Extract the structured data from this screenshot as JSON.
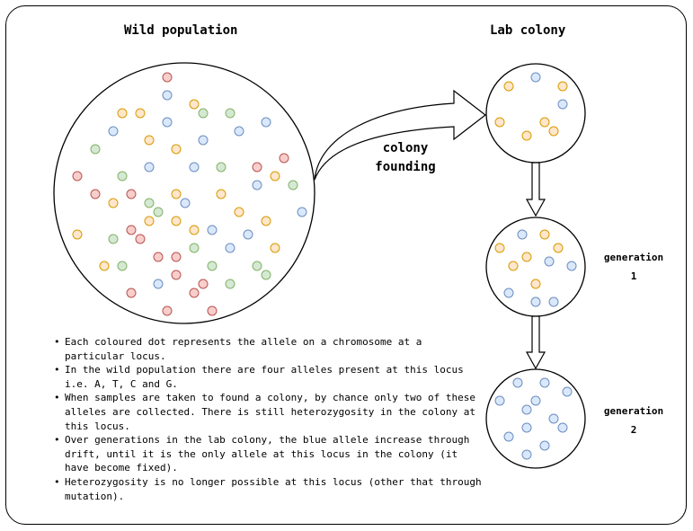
{
  "titles": {
    "wild": "Wild population",
    "lab": "Lab colony"
  },
  "founding_label": [
    "colony",
    "founding"
  ],
  "generations": [
    {
      "label": "generation",
      "number": "1"
    },
    {
      "label": "generation",
      "number": "2"
    }
  ],
  "notes": [
    "Each coloured dot represents the allele on a chromosome at a particular locus.",
    "In the wild population there are four alleles present at this locus i.e.  A, T, C and G.",
    "When samples are taken to found a colony, by chance only two of these alleles are collected. There is still heterozygosity in the colony at this locus.",
    "Over generations in the lab colony, the blue allele increase through drift, until it is the only allele at this locus in the colony (it have become fixed).",
    "Heterozygosity is no longer possible at this locus (other that through mutation)."
  ],
  "allele_colors": {
    "red": {
      "fill": "#f8cecc",
      "stroke": "#b85450"
    },
    "orange": {
      "fill": "#ffe6cc",
      "stroke": "#d79b00"
    },
    "blue": {
      "fill": "#dae8fc",
      "stroke": "#6c8ebf"
    },
    "green": {
      "fill": "#d5e8d4",
      "stroke": "#82b366"
    }
  },
  "dot_counts": {
    "wild": {
      "red": 18,
      "orange": 18,
      "blue": 17,
      "green": 16
    },
    "founding": {
      "orange": 7,
      "blue": 3
    },
    "generation_1": {
      "orange": 6,
      "blue": 7
    },
    "generation_2": {
      "orange": 1,
      "blue": 14
    }
  }
}
